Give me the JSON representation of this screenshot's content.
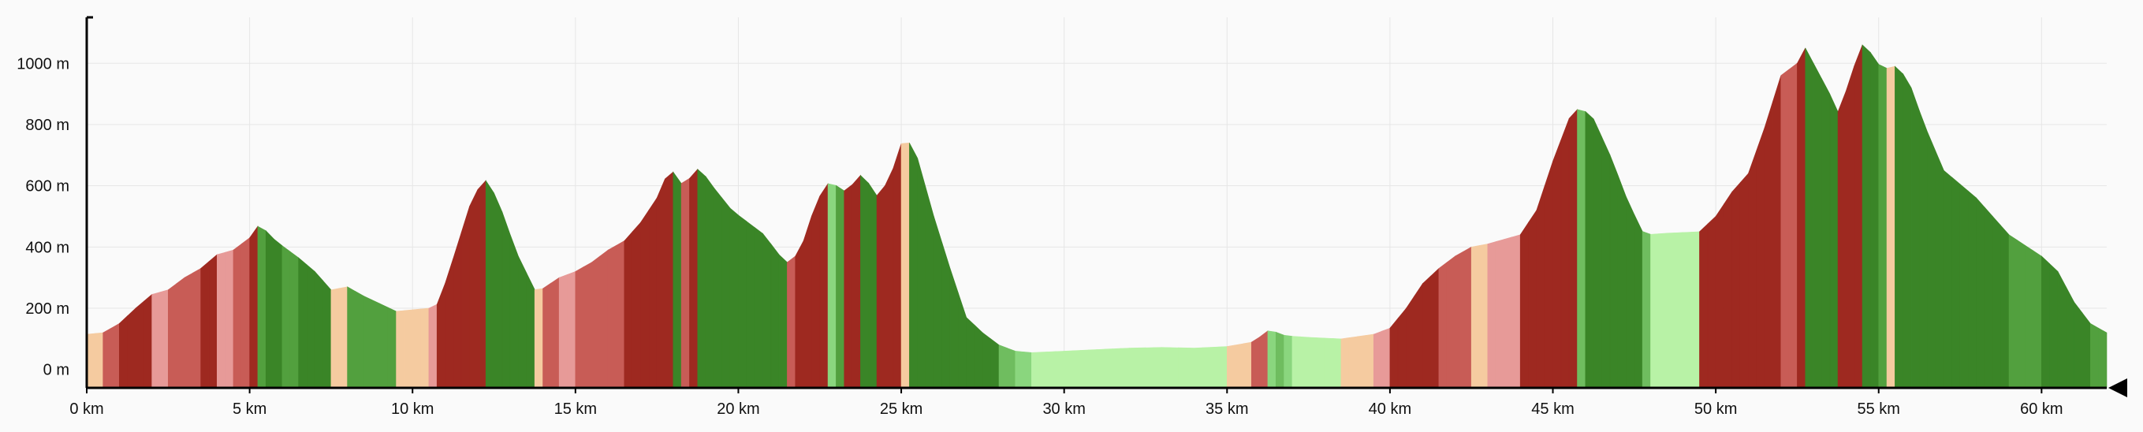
{
  "chart_data": {
    "type": "area",
    "title": "",
    "xlabel": "",
    "ylabel": "",
    "x_unit": "km",
    "y_unit": "m",
    "xlim": [
      0,
      62
    ],
    "ylim": [
      -60,
      1150
    ],
    "grid": true,
    "x_ticks": [
      0,
      5,
      10,
      15,
      20,
      25,
      30,
      35,
      40,
      45,
      50,
      55,
      60
    ],
    "x_tick_labels": [
      "0 km",
      "5 km",
      "10 km",
      "15 km",
      "20 km",
      "25 km",
      "30 km",
      "35 km",
      "40 km",
      "45 km",
      "50 km",
      "55 km",
      "60 km"
    ],
    "y_ticks": [
      0,
      200,
      400,
      600,
      800,
      1000
    ],
    "y_tick_labels": [
      "0 m",
      "200 m",
      "400 m",
      "600 m",
      "800 m",
      "1000 m"
    ],
    "profile": [
      [
        0,
        115
      ],
      [
        0.5,
        120
      ],
      [
        1,
        150
      ],
      [
        1.5,
        200
      ],
      [
        2,
        245
      ],
      [
        2.5,
        260
      ],
      [
        3,
        300
      ],
      [
        3.5,
        330
      ],
      [
        4,
        375
      ],
      [
        4.5,
        390
      ],
      [
        5,
        430
      ],
      [
        5.3,
        475
      ],
      [
        5.8,
        420
      ],
      [
        6.5,
        365
      ],
      [
        7,
        320
      ],
      [
        7.5,
        260
      ],
      [
        8,
        270
      ],
      [
        8.5,
        240
      ],
      [
        9,
        215
      ],
      [
        9.5,
        190
      ],
      [
        10,
        195
      ],
      [
        10.5,
        200
      ],
      [
        10.8,
        215
      ],
      [
        11.3,
        380
      ],
      [
        11.8,
        550
      ],
      [
        12.2,
        625
      ],
      [
        12.6,
        560
      ],
      [
        13.2,
        380
      ],
      [
        13.8,
        250
      ],
      [
        14.5,
        300
      ],
      [
        15,
        320
      ],
      [
        15.5,
        350
      ],
      [
        16,
        390
      ],
      [
        16.5,
        420
      ],
      [
        17,
        480
      ],
      [
        17.5,
        560
      ],
      [
        17.9,
        660
      ],
      [
        18.3,
        600
      ],
      [
        18.8,
        660
      ],
      [
        19.2,
        600
      ],
      [
        19.8,
        520
      ],
      [
        20.3,
        480
      ],
      [
        20.8,
        440
      ],
      [
        21.2,
        380
      ],
      [
        21.6,
        340
      ],
      [
        22,
        420
      ],
      [
        22.4,
        550
      ],
      [
        22.8,
        615
      ],
      [
        23.3,
        580
      ],
      [
        23.8,
        640
      ],
      [
        24.3,
        560
      ],
      [
        24.7,
        640
      ],
      [
        25.1,
        770
      ],
      [
        25.5,
        690
      ],
      [
        26,
        500
      ],
      [
        26.5,
        330
      ],
      [
        27,
        170
      ],
      [
        27.5,
        120
      ],
      [
        28,
        80
      ],
      [
        28.5,
        60
      ],
      [
        29,
        55
      ],
      [
        30,
        60
      ],
      [
        31,
        65
      ],
      [
        32,
        70
      ],
      [
        33,
        72
      ],
      [
        34,
        70
      ],
      [
        35,
        75
      ],
      [
        35.8,
        90
      ],
      [
        36.3,
        130
      ],
      [
        36.8,
        110
      ],
      [
        37.5,
        105
      ],
      [
        38.5,
        100
      ],
      [
        39.5,
        115
      ],
      [
        40,
        135
      ],
      [
        40.5,
        200
      ],
      [
        41,
        280
      ],
      [
        41.5,
        330
      ],
      [
        42,
        370
      ],
      [
        42.5,
        400
      ],
      [
        43,
        410
      ],
      [
        43.5,
        425
      ],
      [
        44,
        440
      ],
      [
        44.5,
        520
      ],
      [
        45,
        680
      ],
      [
        45.5,
        820
      ],
      [
        45.8,
        855
      ],
      [
        46.2,
        830
      ],
      [
        46.8,
        690
      ],
      [
        47.3,
        550
      ],
      [
        47.8,
        440
      ],
      [
        48.5,
        445
      ],
      [
        49.5,
        450
      ],
      [
        50,
        500
      ],
      [
        50.5,
        580
      ],
      [
        51,
        640
      ],
      [
        51.5,
        790
      ],
      [
        52,
        960
      ],
      [
        52.5,
        1000
      ],
      [
        52.7,
        1060
      ],
      [
        53.1,
        980
      ],
      [
        53.5,
        900
      ],
      [
        53.8,
        830
      ],
      [
        54.1,
        950
      ],
      [
        54.5,
        1060
      ],
      [
        54.8,
        1030
      ],
      [
        55.1,
        980
      ],
      [
        55.5,
        990
      ],
      [
        55.9,
        950
      ],
      [
        56.4,
        800
      ],
      [
        57,
        650
      ],
      [
        58,
        560
      ],
      [
        59,
        440
      ],
      [
        60,
        370
      ],
      [
        60.5,
        320
      ],
      [
        61,
        220
      ],
      [
        61.5,
        150
      ],
      [
        62,
        120
      ]
    ],
    "grade_colors": [
      "#9e2920",
      "#c85c56",
      "#e79a98",
      "#f5cba0",
      "#b8f2a6",
      "#8ad67e",
      "#6fbd5f",
      "#52a03e",
      "#3a8527"
    ]
  }
}
